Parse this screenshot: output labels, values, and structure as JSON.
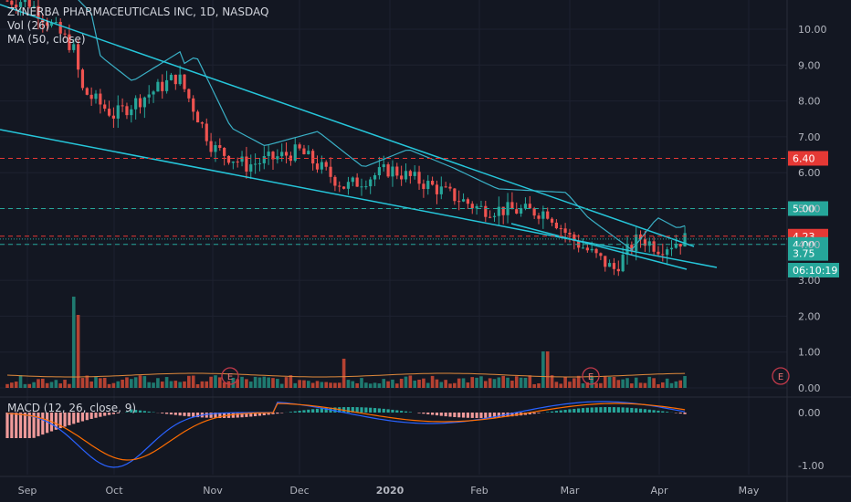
{
  "legend": {
    "title": "ZYNERBA PHARMACEUTICALS INC, 1D, NASDAQ",
    "vol": "Vol (26)",
    "ma": "MA (50, close)"
  },
  "macd_legend": "MACD (12, 26, close, 9)",
  "colors": {
    "background": "#131722",
    "up": "#26a69a",
    "down": "#ef5350",
    "trendline": "#26c6da",
    "ma": "#3ab0c6",
    "grid": "#1e2230",
    "macd_line": "#2962ff",
    "signal_line": "#ff6d00",
    "hist_up": "#26a69a",
    "hist_down": "#ef9a9a"
  },
  "chart_data": {
    "type": "candlestick",
    "title": "ZYNERBA PHARMACEUTICALS INC, 1D, NASDAQ",
    "x_tick_labels": [
      "Sep",
      "Oct",
      "Nov",
      "Dec",
      "2020",
      "Feb",
      "Mar",
      "Apr",
      "May"
    ],
    "y_tick_labels": [
      "10.00",
      "9.00",
      "8.00",
      "7.00",
      "6.00",
      "5.00",
      "4.00",
      "3.00",
      "2.00",
      "1.00",
      "0.00"
    ],
    "ylim": [
      0,
      10.8
    ],
    "price_levels": [
      {
        "label": "6.40",
        "value": 6.4,
        "style": "dashed",
        "color": "#e53935"
      },
      {
        "label": "5.00",
        "value": 5.0,
        "style": "dashed",
        "color": "#26a69a"
      },
      {
        "label": "4.23",
        "value": 4.23,
        "style": "dashed",
        "color": "#e53935"
      },
      {
        "label": "4.00",
        "value": 4.0,
        "style": "dashed",
        "color": "#26a69a"
      },
      {
        "label": "3.75",
        "value": 3.75,
        "style": "none",
        "color": "#26a69a"
      }
    ],
    "countdown_label": "06:10:19",
    "last_price": 4.15,
    "earnings_markers": [
      "E",
      "E",
      "E"
    ],
    "candle_anchors": [
      {
        "x": "Sep",
        "price": 10.8
      },
      {
        "x": "Sep 17",
        "price": 9.5
      },
      {
        "x": "Sep 20",
        "price": 8.3
      },
      {
        "x": "Oct",
        "price": 7.6
      },
      {
        "x": "Oct 20",
        "price": 8.7
      },
      {
        "x": "Nov",
        "price": 6.7
      },
      {
        "x": "Nov 15",
        "price": 6.2
      },
      {
        "x": "Dec",
        "price": 6.6
      },
      {
        "x": "Dec 15",
        "price": 5.6
      },
      {
        "x": "2020",
        "price": 6.1
      },
      {
        "x": "Jan 15",
        "price": 5.6
      },
      {
        "x": "Feb",
        "price": 5.0
      },
      {
        "x": "Feb 20",
        "price": 4.9
      },
      {
        "x": "Mar",
        "price": 4.2
      },
      {
        "x": "Mar 15",
        "price": 3.3
      },
      {
        "x": "Mar 25",
        "price": 4.2
      },
      {
        "x": "Apr",
        "price": 3.9
      },
      {
        "x": "Apr 8",
        "price": 4.15
      }
    ],
    "volume_scale_note": "Vol (26)",
    "macd_ticks": [
      "0.00",
      "-1.00"
    ]
  }
}
